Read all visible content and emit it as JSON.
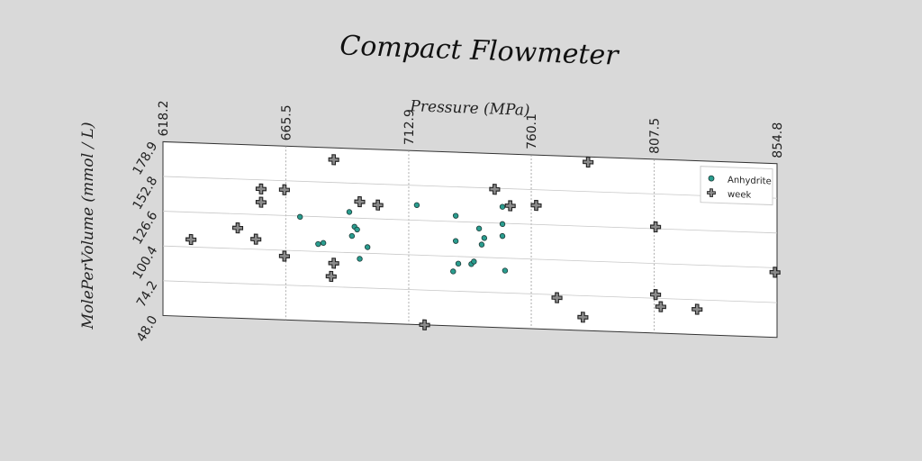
{
  "chart_data": {
    "type": "scatter",
    "title": "Compact Flowmeter",
    "xlabel": "Pressure (MPa)",
    "ylabel": "MolePerVolume (mmol / L)",
    "xlim": [
      618.2,
      854.8
    ],
    "ylim": [
      48.0,
      178.9
    ],
    "xticks": [
      "618.2",
      "665.5",
      "712.9",
      "760.1",
      "807.5",
      "854.8"
    ],
    "yticks": [
      "48.0",
      "74.2",
      "100.4",
      "126.6",
      "152.8",
      "178.9"
    ],
    "grid": true,
    "legend_position": "top-right",
    "colors": {
      "anhydrite": "#2a9d8f",
      "week": "#8c8c8c"
    },
    "series": [
      {
        "name": "Anhydrite",
        "marker": "circle",
        "points": [
          [
            671,
            126
          ],
          [
            678,
            106
          ],
          [
            680,
            107
          ],
          [
            690,
            131
          ],
          [
            691,
            113
          ],
          [
            692,
            120
          ],
          [
            693,
            118
          ],
          [
            694,
            96
          ],
          [
            697,
            105
          ],
          [
            716,
            138
          ],
          [
            730,
            89
          ],
          [
            731,
            131
          ],
          [
            731,
            112
          ],
          [
            732,
            95
          ],
          [
            737,
            95
          ],
          [
            738,
            97
          ],
          [
            740,
            122
          ],
          [
            741,
            110
          ],
          [
            742,
            115
          ],
          [
            749,
            139
          ],
          [
            749,
            126
          ],
          [
            749,
            117
          ],
          [
            750,
            91
          ]
        ]
      },
      {
        "name": "week",
        "marker": "plus",
        "points": [
          [
            629,
            106
          ],
          [
            647,
            116
          ],
          [
            654,
            108
          ],
          [
            656,
            136
          ],
          [
            656,
            146
          ],
          [
            665,
            146
          ],
          [
            665,
            96
          ],
          [
            683,
            82
          ],
          [
            684,
            92
          ],
          [
            684,
            170
          ],
          [
            694,
            139
          ],
          [
            701,
            137
          ],
          [
            719,
            48
          ],
          [
            746,
            152
          ],
          [
            752,
            140
          ],
          [
            762,
            141
          ],
          [
            770,
            72
          ],
          [
            780,
            58
          ],
          [
            782,
            175
          ],
          [
            808,
            77
          ],
          [
            808,
            128
          ],
          [
            810,
            68
          ],
          [
            824,
            67
          ],
          [
            854,
            97
          ]
        ]
      }
    ]
  }
}
